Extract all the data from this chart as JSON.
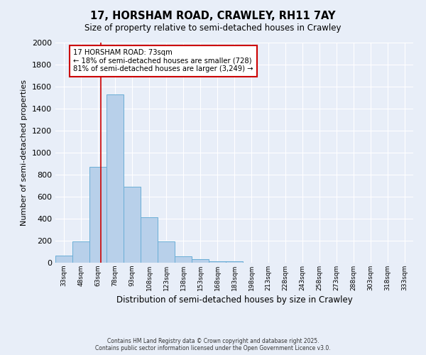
{
  "title_line1": "17, HORSHAM ROAD, CRAWLEY, RH11 7AY",
  "title_line2": "Size of property relative to semi-detached houses in Crawley",
  "xlabel": "Distribution of semi-detached houses by size in Crawley",
  "ylabel": "Number of semi-detached properties",
  "footnote": "Contains HM Land Registry data © Crown copyright and database right 2025.\nContains public sector information licensed under the Open Government Licence v3.0.",
  "bin_labels": [
    "33sqm",
    "48sqm",
    "63sqm",
    "78sqm",
    "93sqm",
    "108sqm",
    "123sqm",
    "138sqm",
    "153sqm",
    "168sqm",
    "183sqm",
    "198sqm",
    "213sqm",
    "228sqm",
    "243sqm",
    "258sqm",
    "273sqm",
    "288sqm",
    "303sqm",
    "318sqm",
    "333sqm"
  ],
  "bar_values": [
    65,
    195,
    870,
    1530,
    690,
    415,
    195,
    60,
    30,
    15,
    15,
    0,
    0,
    0,
    0,
    0,
    0,
    0,
    0,
    0,
    0
  ],
  "bin_starts": [
    33,
    48,
    63,
    78,
    93,
    108,
    123,
    138,
    153,
    168,
    183,
    198,
    213,
    228,
    243,
    258,
    273,
    288,
    303,
    318,
    333
  ],
  "bin_width": 15,
  "bar_color": "#b8d0ea",
  "bar_edge_color": "#6aaed6",
  "bg_color": "#e8eef8",
  "grid_color": "#ffffff",
  "red_line_x": 73,
  "annotation_title": "17 HORSHAM ROAD: 73sqm",
  "annotation_line1": "← 18% of semi-detached houses are smaller (728)",
  "annotation_line2": "81% of semi-detached houses are larger (3,249) →",
  "annotation_box_color": "#ffffff",
  "annotation_box_edge": "#cc0000",
  "ylim": [
    0,
    2000
  ],
  "xlim_left": 33,
  "xlim_right": 348,
  "yticks": [
    0,
    200,
    400,
    600,
    800,
    1000,
    1200,
    1400,
    1600,
    1800,
    2000
  ]
}
